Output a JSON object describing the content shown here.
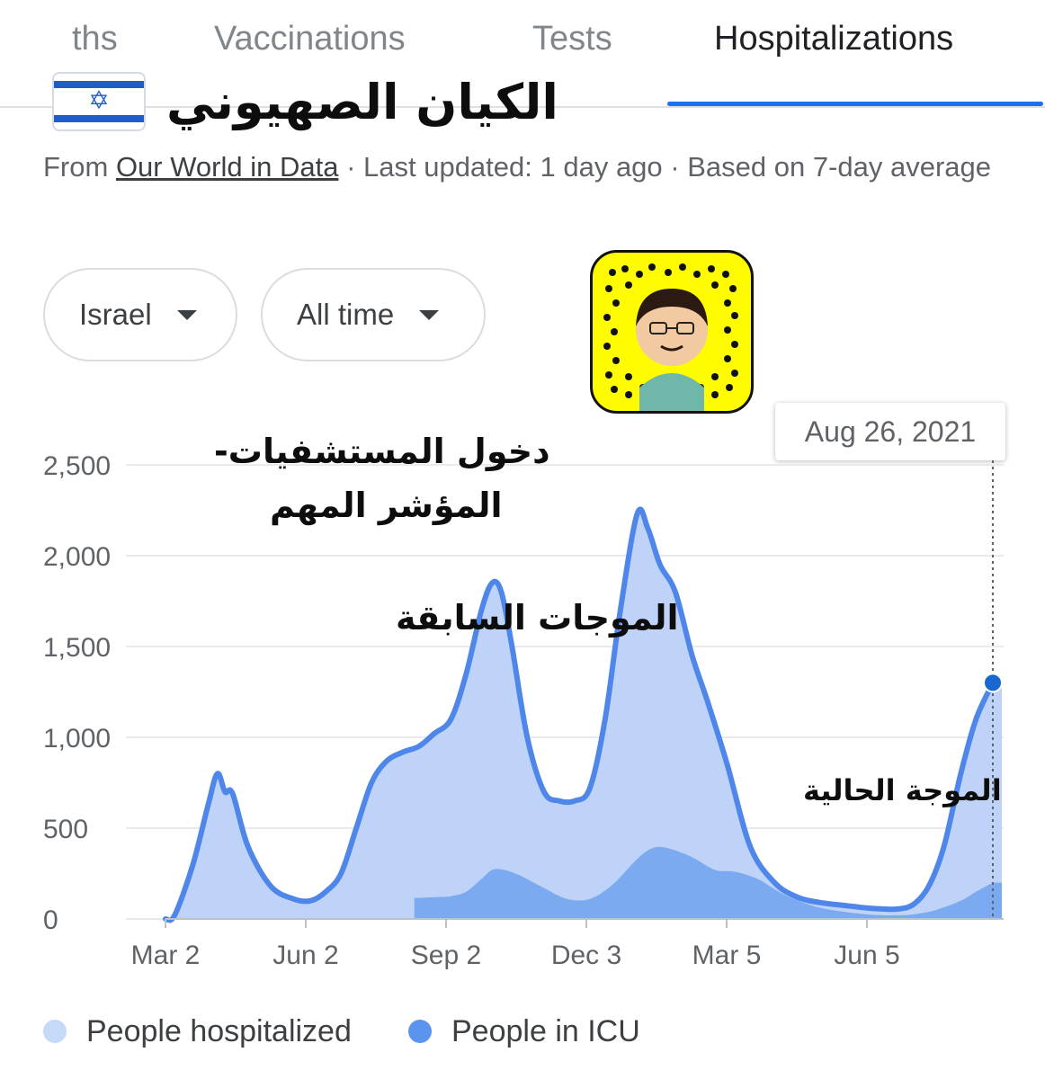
{
  "tabs": [
    {
      "label": "ths",
      "active": false
    },
    {
      "label": "Vaccinations",
      "active": false
    },
    {
      "label": "Tests",
      "active": false
    },
    {
      "label": "Hospitalizations",
      "active": true
    }
  ],
  "overlay": {
    "flag_icon": "israel-flag-icon",
    "country_title_ar": "الكيان الصهيوني",
    "label_line1_ar": "دخول المستشفيات-",
    "label_line2_ar": "المؤشر المهم",
    "previous_waves_ar": "الموجات السابقة",
    "current_wave_ar": "الموجة الحالية",
    "snapcode_icon": "snapcode-avatar-icon"
  },
  "source": {
    "prefix": "From ",
    "link": "Our World in Data",
    "rest": " · Last updated: 1 day ago · Based on 7-day average"
  },
  "filters": {
    "region": "Israel",
    "period": "All time"
  },
  "tooltip": {
    "date": "Aug 26, 2021"
  },
  "colors": {
    "accent": "#1a73e8",
    "hospitalized_line": "#4e86ea",
    "hospitalized_fill": "#bed3f7",
    "icu_fill": "#7baaf0",
    "hospitalized_legend": "#c5d9f8",
    "icu_legend": "#5b94ee",
    "snapchat_yellow": "#fffc00"
  },
  "chart_data": {
    "type": "area",
    "x_start": "2020-03-02",
    "x_end": "2021-08-26",
    "xticks": [
      "Mar 2",
      "Jun 2",
      "Sep 2",
      "Dec 3",
      "Mar 5",
      "Jun 5"
    ],
    "yticks": [
      "0",
      "500",
      "1,000",
      "1,500",
      "2,000",
      "2,500"
    ],
    "ylim": [
      0,
      2500
    ],
    "grid": true,
    "legend_position": "bottom",
    "series": [
      {
        "name": "People hospitalized",
        "x": [
          "2020-03-02",
          "2020-03-08",
          "2020-03-20",
          "2020-03-30",
          "2020-04-05",
          "2020-04-10",
          "2020-04-15",
          "2020-04-25",
          "2020-05-10",
          "2020-05-25",
          "2020-06-05",
          "2020-06-15",
          "2020-06-25",
          "2020-07-05",
          "2020-07-15",
          "2020-07-25",
          "2020-08-05",
          "2020-08-15",
          "2020-08-25",
          "2020-09-05",
          "2020-09-15",
          "2020-09-25",
          "2020-10-02",
          "2020-10-08",
          "2020-10-15",
          "2020-10-25",
          "2020-11-05",
          "2020-11-15",
          "2020-11-25",
          "2020-12-05",
          "2020-12-15",
          "2020-12-25",
          "2021-01-05",
          "2021-01-12",
          "2021-01-20",
          "2021-01-30",
          "2021-02-10",
          "2021-02-20",
          "2021-03-05",
          "2021-03-20",
          "2021-04-05",
          "2021-04-20",
          "2021-05-05",
          "2021-05-20",
          "2021-06-05",
          "2021-06-15",
          "2021-06-25",
          "2021-07-05",
          "2021-07-15",
          "2021-07-25",
          "2021-08-05",
          "2021-08-15",
          "2021-08-26"
        ],
        "values": [
          0,
          20,
          300,
          630,
          800,
          700,
          690,
          400,
          180,
          110,
          100,
          150,
          250,
          500,
          750,
          870,
          920,
          950,
          1020,
          1100,
          1350,
          1700,
          1850,
          1800,
          1500,
          1000,
          700,
          650,
          650,
          720,
          1100,
          1700,
          2230,
          2150,
          1950,
          1800,
          1450,
          1200,
          850,
          400,
          200,
          120,
          90,
          75,
          60,
          55,
          55,
          80,
          180,
          400,
          800,
          1100,
          1300
        ]
      },
      {
        "name": "People in ICU",
        "x": [
          "2020-08-12",
          "2020-08-25",
          "2020-09-05",
          "2020-09-15",
          "2020-09-25",
          "2020-10-02",
          "2020-10-10",
          "2020-10-20",
          "2020-11-05",
          "2020-11-20",
          "2020-12-05",
          "2020-12-20",
          "2021-01-05",
          "2021-01-15",
          "2021-01-25",
          "2021-02-10",
          "2021-02-25",
          "2021-03-10",
          "2021-03-25",
          "2021-04-10",
          "2021-05-01",
          "2021-05-20",
          "2021-06-05",
          "2021-06-20",
          "2021-07-05",
          "2021-07-20",
          "2021-08-05",
          "2021-08-15",
          "2021-08-26"
        ],
        "values": [
          115,
          120,
          125,
          150,
          220,
          270,
          270,
          240,
          170,
          110,
          110,
          190,
          330,
          390,
          390,
          340,
          270,
          260,
          220,
          140,
          70,
          40,
          25,
          20,
          25,
          50,
          100,
          150,
          200
        ]
      }
    ],
    "highlight": {
      "date": "2021-08-26",
      "value": 1300
    }
  }
}
